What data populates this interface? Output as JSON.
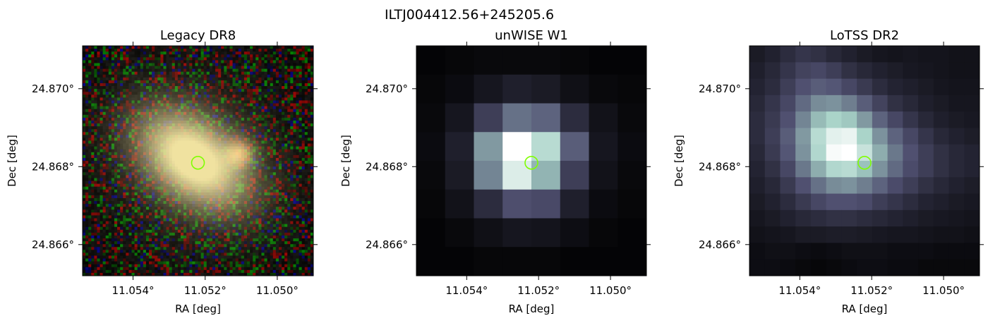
{
  "figure": {
    "suptitle": "ILTJ004412.56+245205.6",
    "marker_color": "#7fff00"
  },
  "chart_data": [
    {
      "type": "heatmap",
      "title": "Legacy DR8",
      "xlabel": "RA [deg]",
      "ylabel": "Dec [deg]",
      "x_ticks": [
        "11.054°",
        "11.052°",
        "11.050°"
      ],
      "y_ticks": [
        "24.870°",
        "24.868°",
        "24.866°"
      ],
      "x_tick_values": [
        11.054,
        11.052,
        11.05
      ],
      "y_tick_values": [
        24.87,
        24.868,
        24.866
      ],
      "xlim": [
        11.0554,
        11.049
      ],
      "ylim": [
        24.8652,
        24.8711
      ],
      "source_position": [
        11.0522,
        24.8681
      ],
      "colormap": "rgb-composite"
    },
    {
      "type": "heatmap",
      "title": "unWISE W1",
      "xlabel": "RA [deg]",
      "ylabel": "Dec [deg]",
      "x_ticks": [
        "11.054°",
        "11.052°",
        "11.050°"
      ],
      "y_ticks": [
        "24.870°",
        "24.868°",
        "24.866°"
      ],
      "x_tick_values": [
        11.054,
        11.052,
        11.05
      ],
      "y_tick_values": [
        24.87,
        24.868,
        24.866
      ],
      "xlim": [
        11.0554,
        11.049
      ],
      "ylim": [
        24.8652,
        24.8711
      ],
      "source_position": [
        11.0522,
        24.8681
      ],
      "colormap": "bone",
      "grid": [
        [
          0.02,
          0.03,
          0.04,
          0.04,
          0.04,
          0.03,
          0.02,
          0.02
        ],
        [
          0.03,
          0.05,
          0.1,
          0.14,
          0.12,
          0.07,
          0.04,
          0.03
        ],
        [
          0.04,
          0.1,
          0.28,
          0.46,
          0.42,
          0.2,
          0.08,
          0.04
        ],
        [
          0.05,
          0.14,
          0.58,
          1.0,
          0.8,
          0.4,
          0.1,
          0.05
        ],
        [
          0.04,
          0.12,
          0.52,
          0.9,
          0.66,
          0.28,
          0.08,
          0.04
        ],
        [
          0.03,
          0.08,
          0.2,
          0.35,
          0.33,
          0.14,
          0.05,
          0.03
        ],
        [
          0.02,
          0.04,
          0.07,
          0.1,
          0.09,
          0.06,
          0.03,
          0.02
        ],
        [
          0.02,
          0.02,
          0.03,
          0.03,
          0.03,
          0.02,
          0.02,
          0.02
        ]
      ]
    },
    {
      "type": "heatmap",
      "title": "LoTSS DR2",
      "xlabel": "RA [deg]",
      "ylabel": "Dec [deg]",
      "x_ticks": [
        "11.054°",
        "11.052°",
        "11.050°"
      ],
      "y_ticks": [
        "24.870°",
        "24.868°",
        "24.866°"
      ],
      "x_tick_values": [
        11.054,
        11.052,
        11.05
      ],
      "y_tick_values": [
        24.87,
        24.868,
        24.866
      ],
      "xlim": [
        11.0554,
        11.049
      ],
      "ylim": [
        24.8652,
        24.8711
      ],
      "source_position": [
        11.0522,
        24.8681
      ],
      "colormap": "bone",
      "grid": [
        [
          0.12,
          0.15,
          0.2,
          0.24,
          0.22,
          0.18,
          0.15,
          0.12,
          0.1,
          0.09,
          0.1,
          0.09,
          0.09,
          0.08,
          0.08
        ],
        [
          0.14,
          0.18,
          0.24,
          0.3,
          0.32,
          0.28,
          0.22,
          0.18,
          0.15,
          0.13,
          0.11,
          0.1,
          0.09,
          0.08,
          0.08
        ],
        [
          0.16,
          0.2,
          0.28,
          0.36,
          0.4,
          0.38,
          0.32,
          0.26,
          0.2,
          0.16,
          0.14,
          0.12,
          0.1,
          0.09,
          0.09
        ],
        [
          0.18,
          0.24,
          0.32,
          0.44,
          0.54,
          0.56,
          0.5,
          0.4,
          0.3,
          0.22,
          0.18,
          0.14,
          0.12,
          0.1,
          0.1
        ],
        [
          0.2,
          0.26,
          0.36,
          0.52,
          0.68,
          0.76,
          0.72,
          0.58,
          0.42,
          0.32,
          0.24,
          0.18,
          0.14,
          0.12,
          0.11
        ],
        [
          0.2,
          0.28,
          0.4,
          0.58,
          0.8,
          0.92,
          0.94,
          0.76,
          0.56,
          0.42,
          0.32,
          0.24,
          0.18,
          0.15,
          0.13
        ],
        [
          0.18,
          0.26,
          0.38,
          0.56,
          0.78,
          0.98,
          1.0,
          0.84,
          0.64,
          0.48,
          0.36,
          0.28,
          0.22,
          0.18,
          0.16
        ],
        [
          0.16,
          0.22,
          0.32,
          0.48,
          0.64,
          0.78,
          0.8,
          0.7,
          0.56,
          0.44,
          0.34,
          0.28,
          0.22,
          0.18,
          0.16
        ],
        [
          0.14,
          0.18,
          0.26,
          0.36,
          0.46,
          0.54,
          0.56,
          0.5,
          0.42,
          0.34,
          0.28,
          0.22,
          0.18,
          0.15,
          0.13
        ],
        [
          0.12,
          0.15,
          0.2,
          0.26,
          0.32,
          0.36,
          0.36,
          0.34,
          0.28,
          0.24,
          0.2,
          0.16,
          0.14,
          0.12,
          0.11
        ],
        [
          0.1,
          0.12,
          0.15,
          0.18,
          0.2,
          0.22,
          0.22,
          0.2,
          0.18,
          0.16,
          0.14,
          0.12,
          0.11,
          0.1,
          0.09
        ],
        [
          0.08,
          0.09,
          0.1,
          0.12,
          0.12,
          0.13,
          0.13,
          0.12,
          0.11,
          0.1,
          0.1,
          0.09,
          0.08,
          0.08,
          0.07
        ],
        [
          0.06,
          0.07,
          0.07,
          0.06,
          0.05,
          0.06,
          0.07,
          0.07,
          0.07,
          0.06,
          0.06,
          0.06,
          0.05,
          0.05,
          0.05
        ],
        [
          0.06,
          0.06,
          0.05,
          0.04,
          0.03,
          0.04,
          0.05,
          0.06,
          0.06,
          0.05,
          0.05,
          0.04,
          0.04,
          0.04,
          0.04
        ]
      ]
    }
  ]
}
